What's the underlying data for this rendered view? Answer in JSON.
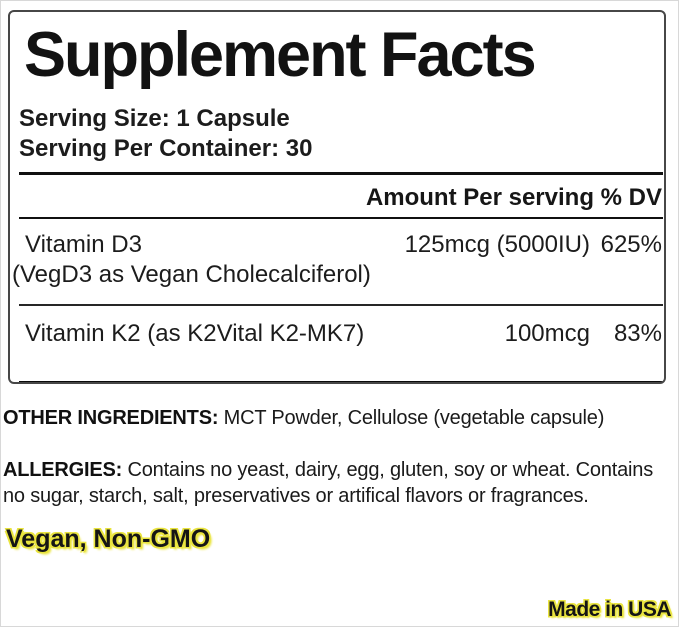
{
  "panel": {
    "title": "Supplement Facts",
    "serving_size": "Serving Size: 1 Capsule",
    "servings_per_container": "Serving Per Container: 30",
    "amount_header": "Amount Per serving % DV",
    "nutrients": [
      {
        "name": "Vitamin D3",
        "name_detail": "(VegD3 as Vegan Cholecalciferol)",
        "amount": "125mcg (5000IU)",
        "daily_value": "625%"
      },
      {
        "name": "Vitamin K2 (as K2Vital K2-MK7)",
        "amount": "100mcg",
        "daily_value": "83%"
      }
    ]
  },
  "sections": {
    "other_ingredients": {
      "label": "OTHER INGREDIENTS:",
      "text": "MCT Powder, Cellulose (vegetable capsule)"
    },
    "allergies": {
      "label": "ALLERGIES:",
      "text": "Contains no yeast, dairy, egg, gluten, soy or wheat. Contains\nno sugar, starch, salt, preservatives or artifical flavors or fragrances."
    },
    "claims": "Vegan, Non-GMO"
  },
  "footer": {
    "made_in": "Made in USA"
  },
  "colors": {
    "text": "#171717",
    "panel_border": "#474747",
    "rule_black": "#101010",
    "highlight_yellow": "#e9e43e"
  }
}
